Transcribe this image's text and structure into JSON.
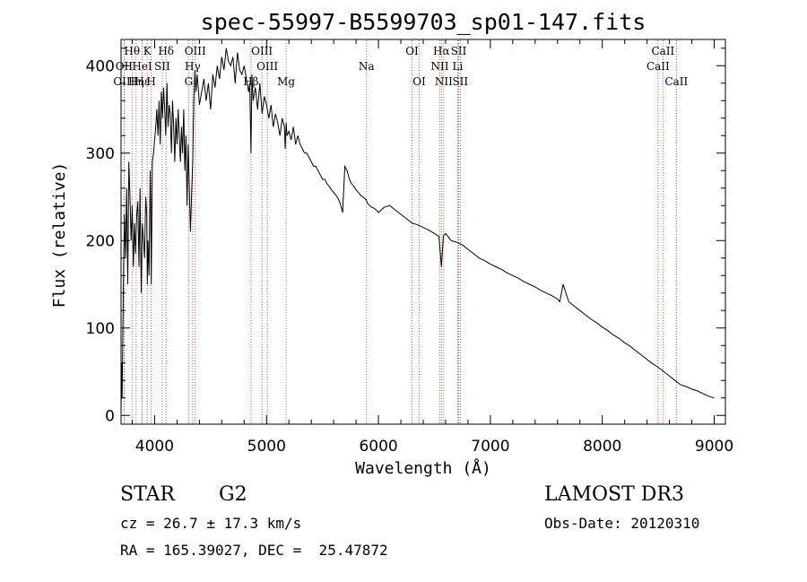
{
  "chart_data": {
    "type": "line",
    "title": "spec-55997-B5599703_sp01-147.fits",
    "xlabel": "Wavelength (Å)",
    "ylabel": "Flux (relative)",
    "xlim": [
      3700,
      9100
    ],
    "ylim": [
      -10,
      430
    ],
    "xticks": [
      4000,
      5000,
      6000,
      7000,
      8000,
      9000
    ],
    "yticks": [
      0,
      100,
      200,
      300,
      400
    ],
    "series": [
      {
        "name": "spectrum",
        "x": [
          3700,
          3705,
          3710,
          3720,
          3730,
          3740,
          3750,
          3760,
          3770,
          3780,
          3790,
          3800,
          3810,
          3820,
          3830,
          3840,
          3850,
          3860,
          3870,
          3880,
          3890,
          3900,
          3910,
          3920,
          3930,
          3935,
          3940,
          3950,
          3960,
          3965,
          3970,
          3980,
          3990,
          4000,
          4010,
          4020,
          4030,
          4040,
          4050,
          4060,
          4070,
          4080,
          4090,
          4100,
          4110,
          4120,
          4130,
          4140,
          4150,
          4160,
          4170,
          4180,
          4190,
          4200,
          4210,
          4220,
          4230,
          4240,
          4250,
          4260,
          4270,
          4280,
          4290,
          4300,
          4310,
          4320,
          4330,
          4340,
          4350,
          4360,
          4370,
          4380,
          4390,
          4400,
          4420,
          4440,
          4460,
          4480,
          4500,
          4520,
          4540,
          4560,
          4580,
          4600,
          4620,
          4640,
          4660,
          4680,
          4700,
          4720,
          4740,
          4760,
          4780,
          4800,
          4820,
          4840,
          4850,
          4861,
          4870,
          4880,
          4900,
          4920,
          4940,
          4960,
          4980,
          5000,
          5020,
          5040,
          5060,
          5080,
          5100,
          5120,
          5140,
          5160,
          5167,
          5175,
          5183,
          5200,
          5220,
          5240,
          5260,
          5280,
          5300,
          5320,
          5340,
          5360,
          5380,
          5400,
          5420,
          5440,
          5460,
          5480,
          5500,
          5520,
          5540,
          5560,
          5580,
          5600,
          5620,
          5640,
          5660,
          5680,
          5700,
          5720,
          5740,
          5760,
          5780,
          5800,
          5820,
          5840,
          5860,
          5880,
          5893,
          5900,
          5920,
          5940,
          5960,
          5980,
          6000,
          6050,
          6100,
          6150,
          6200,
          6250,
          6300,
          6350,
          6400,
          6450,
          6500,
          6540,
          6563,
          6580,
          6600,
          6650,
          6700,
          6750,
          6800,
          6850,
          6900,
          6950,
          7000,
          7050,
          7100,
          7150,
          7200,
          7250,
          7300,
          7350,
          7400,
          7450,
          7500,
          7550,
          7600,
          7620,
          7650,
          7700,
          7750,
          7800,
          7850,
          7900,
          7950,
          8000,
          8050,
          8100,
          8150,
          8200,
          8250,
          8300,
          8350,
          8400,
          8450,
          8500,
          8550,
          8600,
          8650,
          8700,
          8750,
          8800,
          8850,
          8900,
          8950,
          9000
        ],
        "values": [
          2,
          60,
          20,
          140,
          230,
          180,
          260,
          150,
          290,
          250,
          200,
          240,
          170,
          220,
          185,
          230,
          245,
          170,
          260,
          140,
          220,
          200,
          180,
          250,
          230,
          150,
          200,
          160,
          280,
          240,
          150,
          290,
          300,
          315,
          330,
          350,
          320,
          360,
          310,
          370,
          340,
          375,
          350,
          320,
          380,
          330,
          355,
          345,
          300,
          360,
          330,
          290,
          340,
          310,
          350,
          320,
          290,
          330,
          300,
          350,
          280,
          320,
          240,
          310,
          260,
          210,
          250,
          290,
          360,
          395,
          370,
          390,
          375,
          355,
          370,
          385,
          360,
          380,
          350,
          390,
          375,
          400,
          385,
          410,
          395,
          420,
          405,
          400,
          410,
          380,
          415,
          395,
          390,
          400,
          385,
          370,
          380,
          300,
          390,
          360,
          375,
          350,
          380,
          345,
          365,
          355,
          340,
          355,
          330,
          345,
          335,
          320,
          340,
          330,
          305,
          335,
          320,
          325,
          315,
          330,
          310,
          320,
          310,
          305,
          300,
          300,
          295,
          290,
          285,
          285,
          280,
          275,
          270,
          270,
          265,
          262,
          258,
          255,
          252,
          248,
          242,
          232,
          285,
          280,
          270,
          265,
          262,
          258,
          255,
          252,
          250,
          248,
          246,
          243,
          240,
          238,
          237,
          235,
          232,
          238,
          240,
          235,
          230,
          225,
          220,
          218,
          215,
          212,
          208,
          205,
          170,
          205,
          208,
          200,
          198,
          195,
          190,
          185,
          180,
          177,
          173,
          170,
          167,
          163,
          160,
          157,
          153,
          150,
          147,
          143,
          140,
          137,
          133,
          130,
          150,
          130,
          125,
          120,
          115,
          110,
          106,
          101,
          97,
          92,
          88,
          83,
          79,
          74,
          69,
          64,
          59,
          55,
          50,
          45,
          40,
          35,
          33,
          30,
          28,
          25,
          22,
          20
        ]
      }
    ],
    "lines": [
      {
        "label": "Hθ",
        "x": 3798,
        "row": 0
      },
      {
        "label": "OII",
        "x": 3727,
        "row": 1
      },
      {
        "label": "OIII",
        "x": 3727,
        "row": 2
      },
      {
        "label": "Hε",
        "x": 3889,
        "row": 2
      },
      {
        "label": "Hη",
        "x": 3835,
        "row": 2
      },
      {
        "label": "K",
        "x": 3934,
        "row": 0
      },
      {
        "label": "HeI",
        "x": 3889,
        "row": 1
      },
      {
        "label": "SII",
        "x": 4068,
        "row": 1
      },
      {
        "label": "H",
        "x": 3969,
        "row": 2
      },
      {
        "label": "Hδ",
        "x": 4102,
        "row": 0
      },
      {
        "label": "OIII",
        "x": 4363,
        "row": 0
      },
      {
        "label": "Hγ",
        "x": 4340,
        "row": 1
      },
      {
        "label": "G",
        "x": 4304,
        "row": 2
      },
      {
        "label": "OIII",
        "x": 4959,
        "row": 0
      },
      {
        "label": "OIII",
        "x": 5007,
        "row": 1
      },
      {
        "label": "Hβ",
        "x": 4861,
        "row": 2
      },
      {
        "label": "Mg",
        "x": 5175,
        "row": 2
      },
      {
        "label": "Na",
        "x": 5893,
        "row": 1
      },
      {
        "label": "OI",
        "x": 6300,
        "row": 0
      },
      {
        "label": "OI",
        "x": 6364,
        "row": 2
      },
      {
        "label": "Hα",
        "x": 6563,
        "row": 0
      },
      {
        "label": "SII",
        "x": 6717,
        "row": 0
      },
      {
        "label": "NII",
        "x": 6548,
        "row": 1
      },
      {
        "label": "Li",
        "x": 6708,
        "row": 1
      },
      {
        "label": "NII",
        "x": 6583,
        "row": 2
      },
      {
        "label": "SII",
        "x": 6731,
        "row": 2
      },
      {
        "label": "CaII",
        "x": 8542,
        "row": 0
      },
      {
        "label": "CaII",
        "x": 8498,
        "row": 1
      },
      {
        "label": "CaII",
        "x": 8662,
        "row": 2
      }
    ]
  },
  "info": {
    "class": "STAR",
    "subclass": "G2",
    "cz": "cz = 26.7 ± 17.3 km/s",
    "radec": "RA = 165.39027, DEC =  25.47872",
    "survey": "LAMOST DR3",
    "obsdate": "Obs-Date: 20120310"
  },
  "colors": {
    "spectrum": "#000000",
    "lines": "#c83232",
    "axis": "#000000"
  }
}
